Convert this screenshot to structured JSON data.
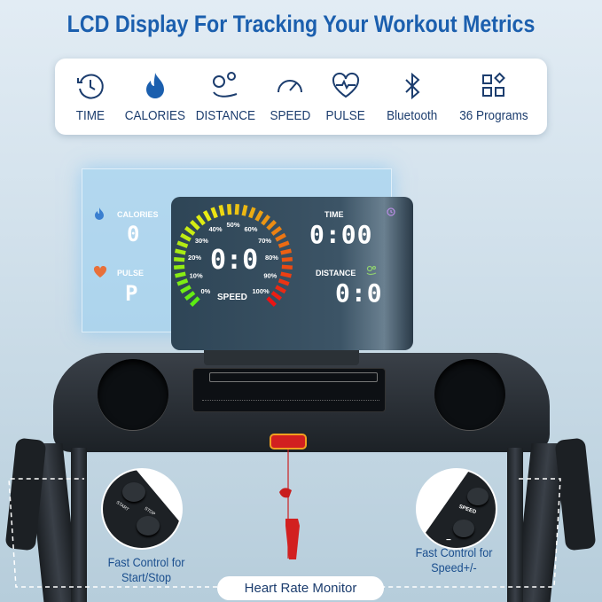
{
  "title": "LCD Display For Tracking Your Workout Metrics",
  "metrics": [
    {
      "label": "TIME",
      "icon": "clock-icon"
    },
    {
      "label": "CALORIES",
      "icon": "flame-icon"
    },
    {
      "label": "DISTANCE",
      "icon": "map-pin-icon"
    },
    {
      "label": "SPEED",
      "icon": "speedometer-icon"
    },
    {
      "label": "PULSE",
      "icon": "heart-pulse-icon"
    },
    {
      "label": "Bluetooth",
      "icon": "bluetooth-icon"
    },
    {
      "label": "36 Programs",
      "icon": "grid-icon"
    }
  ],
  "display": {
    "calories_label": "CALORIES",
    "calories_value": "0",
    "pulse_label": "PULSE",
    "pulse_value": "P",
    "speed_label": "SPEED",
    "speed_value": "0:0",
    "gauge_ticks": [
      "0%",
      "10%",
      "20%",
      "30%",
      "40%",
      "50%",
      "60%",
      "70%",
      "80%",
      "90%",
      "100%"
    ],
    "time_label": "TIME",
    "time_value": "0:00",
    "distance_label": "DISTANCE",
    "distance_value": "0:0"
  },
  "callouts": {
    "start_stop_line1": "Fast Control for",
    "start_stop_line2": "Start/Stop",
    "speed_line1": "Fast Control for",
    "speed_line2": "Speed+/-",
    "heart_rate": "Heart Rate Monitor",
    "start_label": "START",
    "stop_label": "STOP",
    "speed_button_label": "SPEED",
    "plus": "+",
    "minus": "−"
  },
  "colors": {
    "title": "#1b5fae",
    "safety_key": "#d22020",
    "gauge_green": "#7ac92a",
    "gauge_red": "#e02a1a"
  }
}
